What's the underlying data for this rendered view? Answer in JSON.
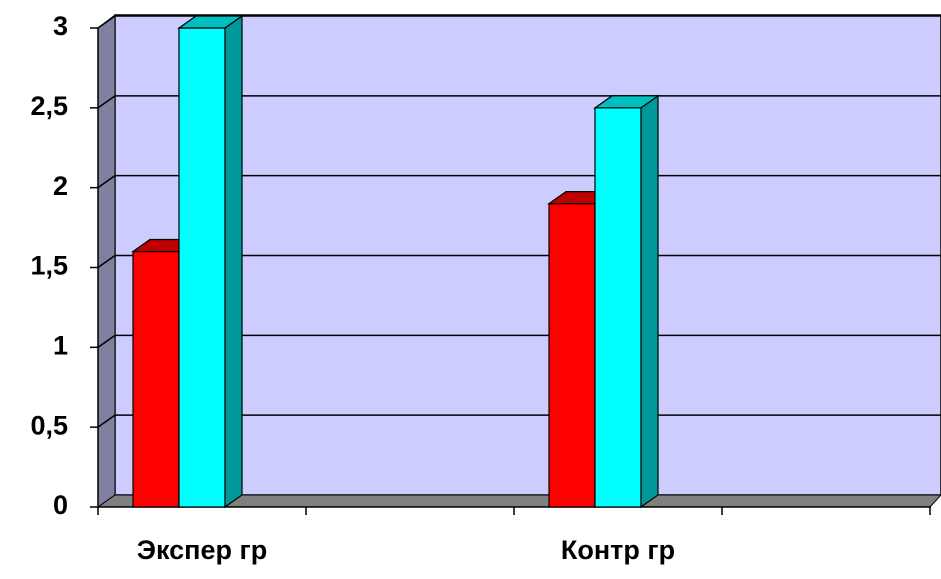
{
  "chart_data": {
    "type": "bar3d",
    "categories": [
      "Экспер гр",
      null,
      "Контр гр",
      null
    ],
    "series": [
      {
        "color": "#ff0000",
        "values": [
          1.6,
          null,
          1.9,
          null
        ]
      },
      {
        "color": "#00ffff",
        "values": [
          3,
          null,
          2.5,
          null
        ]
      }
    ],
    "ylim": [
      0,
      3
    ],
    "yticks": [
      0,
      {
        "value": 0.5,
        "label": "0,5"
      },
      1,
      {
        "value": 1.5,
        "label": "1,5"
      },
      2,
      {
        "value": 2.5,
        "label": "2,5"
      },
      3
    ],
    "grid": true
  }
}
